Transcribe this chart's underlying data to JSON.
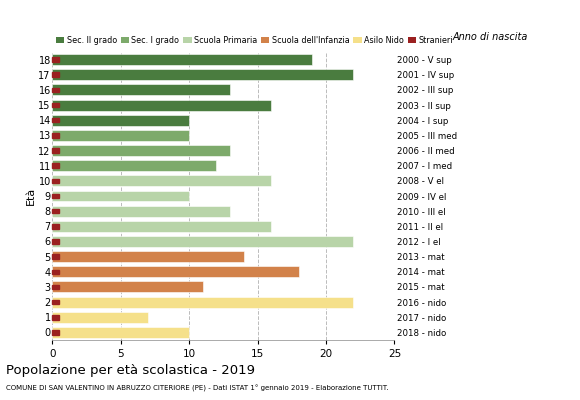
{
  "ages": [
    18,
    17,
    16,
    15,
    14,
    13,
    12,
    11,
    10,
    9,
    8,
    7,
    6,
    5,
    4,
    3,
    2,
    1,
    0
  ],
  "anno_nascita": [
    "2000 - V sup",
    "2001 - IV sup",
    "2002 - III sup",
    "2003 - II sup",
    "2004 - I sup",
    "2005 - III med",
    "2006 - II med",
    "2007 - I med",
    "2008 - V el",
    "2009 - IV el",
    "2010 - III el",
    "2011 - II el",
    "2012 - I el",
    "2013 - mat",
    "2014 - mat",
    "2015 - mat",
    "2016 - nido",
    "2017 - nido",
    "2018 - nido"
  ],
  "values": [
    19,
    22,
    13,
    16,
    10,
    10,
    13,
    12,
    16,
    10,
    13,
    16,
    22,
    14,
    18,
    11,
    22,
    7,
    10
  ],
  "stranieri_present": [
    true,
    true,
    true,
    true,
    true,
    true,
    true,
    true,
    true,
    true,
    true,
    true,
    true,
    true,
    true,
    true,
    true,
    true,
    true
  ],
  "categories": [
    "Sec. II grado",
    "Sec. I grado",
    "Scuola Primaria",
    "Scuola dell'Infanzia",
    "Asilo Nido",
    "Stranieri"
  ],
  "colors": {
    "Sec. II grado": "#4a7c3f",
    "Sec. I grado": "#7daa6b",
    "Scuola Primaria": "#b8d4a8",
    "Scuola dell'Infanzia": "#d2824a",
    "Asilo Nido": "#f5e08a",
    "Stranieri": "#9b2020"
  },
  "bar_colors": [
    "#4a7c3f",
    "#4a7c3f",
    "#4a7c3f",
    "#4a7c3f",
    "#4a7c3f",
    "#7daa6b",
    "#7daa6b",
    "#7daa6b",
    "#b8d4a8",
    "#b8d4a8",
    "#b8d4a8",
    "#b8d4a8",
    "#b8d4a8",
    "#d2824a",
    "#d2824a",
    "#d2824a",
    "#f5e08a",
    "#f5e08a",
    "#f5e08a"
  ],
  "title": "Popolazione per età scolastica - 2019",
  "subtitle": "COMUNE DI SAN VALENTINO IN ABRUZZO CITERIORE (PE) - Dati ISTAT 1° gennaio 2019 - Elaborazione TUTTIT.",
  "ylabel": "Età",
  "legend_title": "Anno di nascita",
  "xlim": [
    0,
    25
  ],
  "xticks": [
    0,
    5,
    10,
    15,
    20,
    25
  ],
  "background_color": "#ffffff",
  "grid_color": "#bbbbbb"
}
